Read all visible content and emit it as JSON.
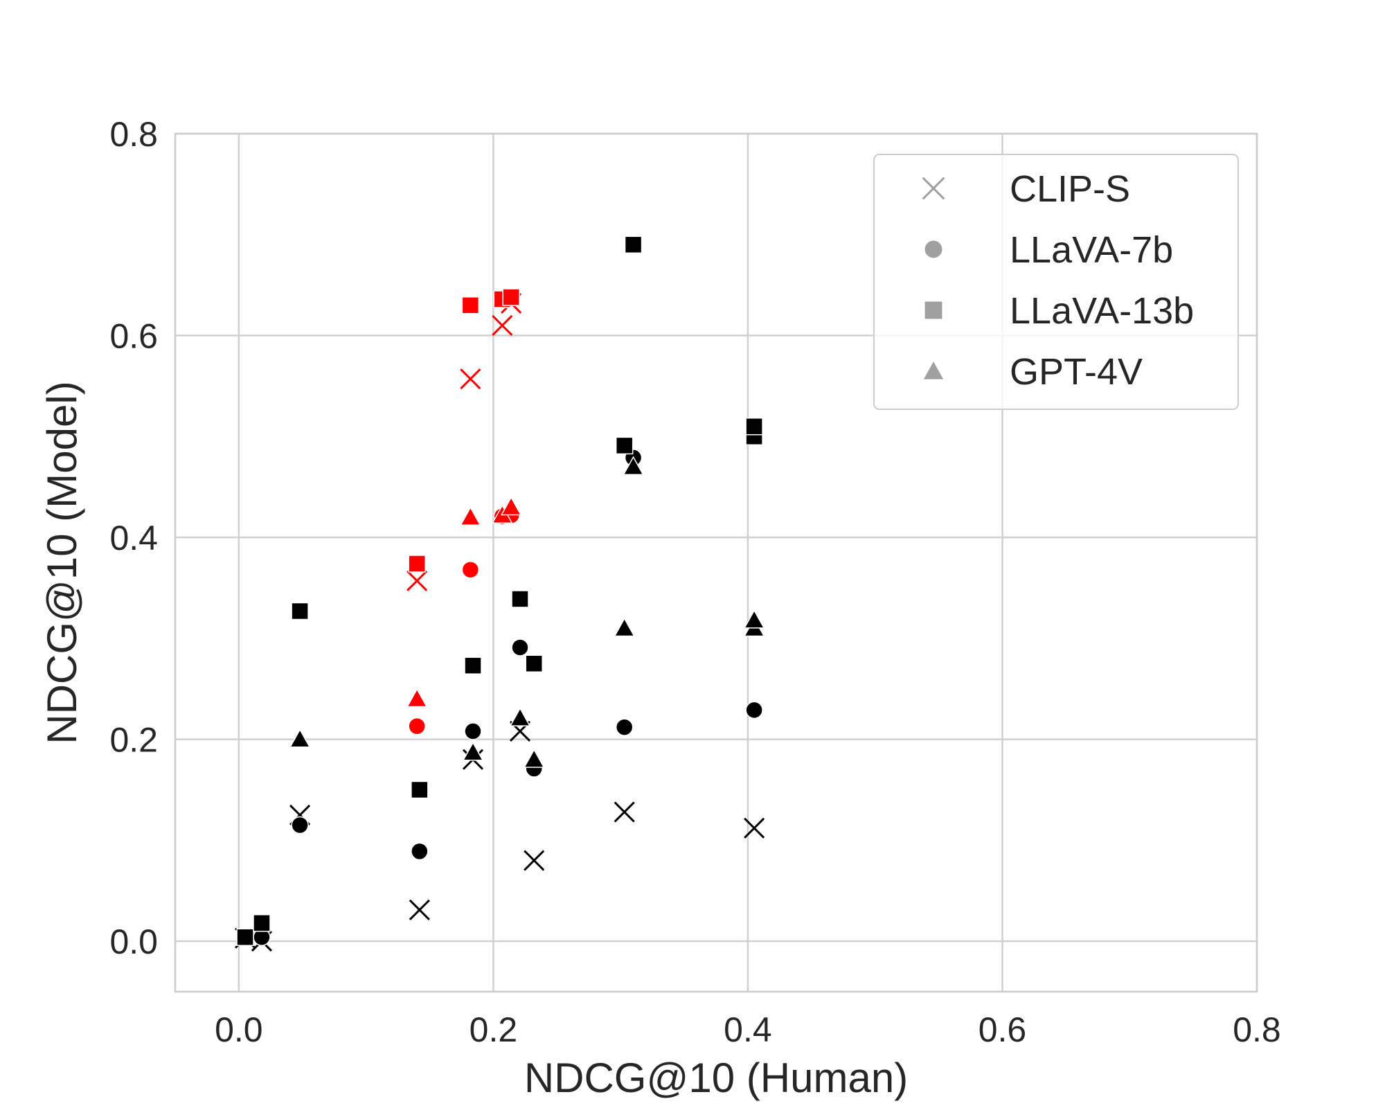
{
  "chart_data": {
    "type": "scatter",
    "xlabel": "NDCG@10 (Human)",
    "ylabel": "NDCG@10 (Model)",
    "xlim": [
      -0.05,
      0.8
    ],
    "ylim": [
      -0.05,
      0.8
    ],
    "xticks": [
      "0.0",
      "0.2",
      "0.4",
      "0.6",
      "0.8"
    ],
    "yticks": [
      "0.0",
      "0.2",
      "0.4",
      "0.6",
      "0.8"
    ],
    "xtick_values": [
      0.0,
      0.2,
      0.4,
      0.6,
      0.8
    ],
    "ytick_values": [
      0.0,
      0.2,
      0.4,
      0.6,
      0.8
    ],
    "grid": true,
    "legend_position": "top-right",
    "colors": {
      "highlight": "#ff0000",
      "default": "#000000",
      "legend_marker": "#a0a0a0",
      "grid": "#d0d0d0"
    },
    "series": [
      {
        "name": "CLIP-S",
        "marker": "x",
        "points": [
          {
            "x": 0.005,
            "y": 0.003,
            "color": "black"
          },
          {
            "x": 0.018,
            "y": 0.0,
            "color": "black"
          },
          {
            "x": 0.048,
            "y": 0.125,
            "color": "black"
          },
          {
            "x": 0.142,
            "y": 0.031,
            "color": "black"
          },
          {
            "x": 0.14,
            "y": 0.357,
            "color": "red"
          },
          {
            "x": 0.182,
            "y": 0.557,
            "color": "red"
          },
          {
            "x": 0.184,
            "y": 0.18,
            "color": "black"
          },
          {
            "x": 0.207,
            "y": 0.61,
            "color": "red"
          },
          {
            "x": 0.214,
            "y": 0.632,
            "color": "red"
          },
          {
            "x": 0.221,
            "y": 0.208,
            "color": "black"
          },
          {
            "x": 0.232,
            "y": 0.08,
            "color": "black"
          },
          {
            "x": 0.303,
            "y": 0.128,
            "color": "black"
          },
          {
            "x": 0.405,
            "y": 0.112,
            "color": "black"
          }
        ]
      },
      {
        "name": "LLaVA-7b",
        "marker": "circle",
        "points": [
          {
            "x": 0.005,
            "y": 0.003,
            "color": "black"
          },
          {
            "x": 0.018,
            "y": 0.004,
            "color": "black"
          },
          {
            "x": 0.048,
            "y": 0.115,
            "color": "black"
          },
          {
            "x": 0.142,
            "y": 0.089,
            "color": "black"
          },
          {
            "x": 0.14,
            "y": 0.213,
            "color": "red"
          },
          {
            "x": 0.182,
            "y": 0.368,
            "color": "red"
          },
          {
            "x": 0.184,
            "y": 0.208,
            "color": "black"
          },
          {
            "x": 0.207,
            "y": 0.421,
            "color": "red"
          },
          {
            "x": 0.214,
            "y": 0.422,
            "color": "red"
          },
          {
            "x": 0.221,
            "y": 0.291,
            "color": "black"
          },
          {
            "x": 0.232,
            "y": 0.171,
            "color": "black"
          },
          {
            "x": 0.303,
            "y": 0.212,
            "color": "black"
          },
          {
            "x": 0.31,
            "y": 0.479,
            "color": "black"
          },
          {
            "x": 0.405,
            "y": 0.229,
            "color": "black"
          }
        ]
      },
      {
        "name": "LLaVA-13b",
        "marker": "square",
        "points": [
          {
            "x": 0.005,
            "y": 0.004,
            "color": "black"
          },
          {
            "x": 0.018,
            "y": 0.018,
            "color": "black"
          },
          {
            "x": 0.048,
            "y": 0.327,
            "color": "black"
          },
          {
            "x": 0.142,
            "y": 0.15,
            "color": "black"
          },
          {
            "x": 0.14,
            "y": 0.374,
            "color": "red"
          },
          {
            "x": 0.182,
            "y": 0.63,
            "color": "red"
          },
          {
            "x": 0.184,
            "y": 0.273,
            "color": "black"
          },
          {
            "x": 0.207,
            "y": 0.636,
            "color": "red"
          },
          {
            "x": 0.214,
            "y": 0.638,
            "color": "red"
          },
          {
            "x": 0.221,
            "y": 0.339,
            "color": "black"
          },
          {
            "x": 0.232,
            "y": 0.275,
            "color": "black"
          },
          {
            "x": 0.303,
            "y": 0.491,
            "color": "black"
          },
          {
            "x": 0.31,
            "y": 0.69,
            "color": "black"
          },
          {
            "x": 0.405,
            "y": 0.5,
            "color": "black"
          },
          {
            "x": 0.405,
            "y": 0.51,
            "color": "black"
          }
        ]
      },
      {
        "name": "GPT-4V",
        "marker": "triangle",
        "points": [
          {
            "x": 0.048,
            "y": 0.2,
            "color": "black"
          },
          {
            "x": 0.14,
            "y": 0.24,
            "color": "red"
          },
          {
            "x": 0.182,
            "y": 0.42,
            "color": "red"
          },
          {
            "x": 0.184,
            "y": 0.187,
            "color": "black"
          },
          {
            "x": 0.207,
            "y": 0.422,
            "color": "red"
          },
          {
            "x": 0.214,
            "y": 0.43,
            "color": "red"
          },
          {
            "x": 0.221,
            "y": 0.221,
            "color": "black"
          },
          {
            "x": 0.232,
            "y": 0.18,
            "color": "black"
          },
          {
            "x": 0.303,
            "y": 0.31,
            "color": "black"
          },
          {
            "x": 0.31,
            "y": 0.47,
            "color": "black"
          },
          {
            "x": 0.405,
            "y": 0.31,
            "color": "black"
          },
          {
            "x": 0.405,
            "y": 0.318,
            "color": "black"
          }
        ]
      }
    ]
  }
}
